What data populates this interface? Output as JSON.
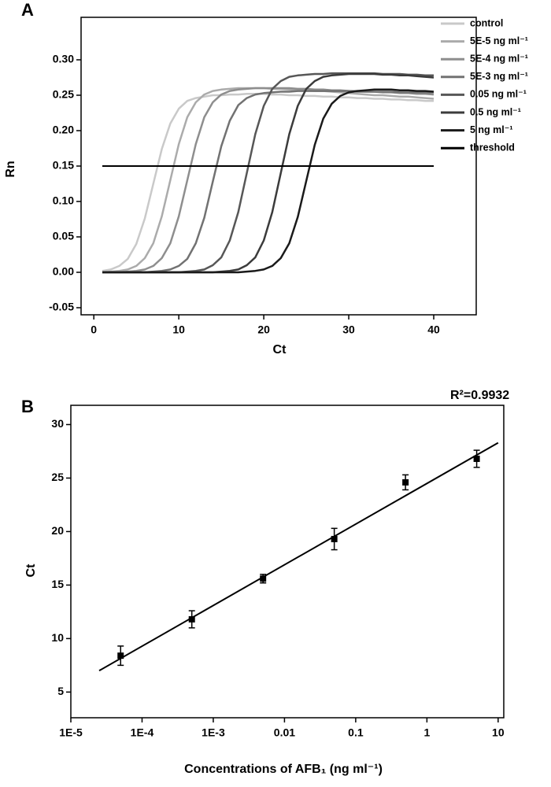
{
  "chart_data": [
    {
      "type": "line",
      "panel_label": "A",
      "xlabel": "Ct",
      "ylabel": "Rn",
      "xlim": [
        -1.5,
        45
      ],
      "xticks": [
        0,
        10,
        20,
        30,
        40
      ],
      "ylim": [
        -0.06,
        0.36
      ],
      "yticks": [
        {
          "value": -0.05,
          "label": "-0.05"
        },
        {
          "value": 0,
          "label": "0.00"
        },
        {
          "value": 0.05,
          "label": "0.05"
        },
        {
          "value": 0.1,
          "label": "0.10"
        },
        {
          "value": 0.15,
          "label": "0.15"
        },
        {
          "value": 0.2,
          "label": "0.20"
        },
        {
          "value": 0.25,
          "label": "0.25"
        },
        {
          "value": 0.3,
          "label": "0.30"
        }
      ],
      "x": [
        1,
        2,
        3,
        4,
        5,
        6,
        7,
        8,
        9,
        10,
        11,
        12,
        13,
        14,
        15,
        16,
        17,
        18,
        19,
        20,
        21,
        22,
        23,
        24,
        25,
        26,
        27,
        28,
        29,
        30,
        31,
        32,
        33,
        34,
        35,
        36,
        37,
        38,
        39,
        40
      ],
      "series": [
        {
          "name": "control",
          "color": "#c9c9c9",
          "values": [
            0.002,
            0.004,
            0.009,
            0.019,
            0.04,
            0.076,
            0.125,
            0.174,
            0.21,
            0.231,
            0.242,
            0.246,
            0.248,
            0.25,
            0.25,
            0.251,
            0.251,
            0.252,
            0.252,
            0.252,
            0.251,
            0.251,
            0.25,
            0.25,
            0.249,
            0.249,
            0.248,
            0.248,
            0.247,
            0.247,
            0.246,
            0.246,
            0.245,
            0.245,
            0.244,
            0.244,
            0.243,
            0.243,
            0.242,
            0.242
          ]
        },
        {
          "name": "5E-5 ng ml⁻¹",
          "color": "#ababab",
          "values": [
            0,
            0.001,
            0.002,
            0.004,
            0.009,
            0.02,
            0.041,
            0.079,
            0.13,
            0.181,
            0.219,
            0.24,
            0.251,
            0.256,
            0.258,
            0.259,
            0.26,
            0.26,
            0.26,
            0.26,
            0.259,
            0.259,
            0.258,
            0.258,
            0.257,
            0.256,
            0.256,
            0.255,
            0.254,
            0.253,
            0.252,
            0.251,
            0.25,
            0.25,
            0.249,
            0.248,
            0.248,
            0.247,
            0.246,
            0.245
          ]
        },
        {
          "name": "5E-4 ng ml⁻¹",
          "color": "#8e8e8e",
          "values": [
            0,
            0,
            0,
            0.001,
            0.002,
            0.004,
            0.009,
            0.02,
            0.041,
            0.079,
            0.13,
            0.181,
            0.219,
            0.24,
            0.251,
            0.256,
            0.258,
            0.259,
            0.26,
            0.26,
            0.26,
            0.26,
            0.26,
            0.259,
            0.259,
            0.258,
            0.258,
            0.257,
            0.257,
            0.256,
            0.256,
            0.255,
            0.255,
            0.254,
            0.254,
            0.253,
            0.253,
            0.252,
            0.252,
            0.251
          ]
        },
        {
          "name": "5E-3 ng ml⁻¹",
          "color": "#727272",
          "values": [
            0,
            0,
            0,
            0,
            0,
            0,
            0.001,
            0.002,
            0.004,
            0.009,
            0.019,
            0.041,
            0.077,
            0.128,
            0.178,
            0.214,
            0.236,
            0.246,
            0.251,
            0.253,
            0.254,
            0.255,
            0.255,
            0.256,
            0.256,
            0.256,
            0.256,
            0.256,
            0.256,
            0.256,
            0.255,
            0.255,
            0.255,
            0.255,
            0.255,
            0.254,
            0.254,
            0.254,
            0.254,
            0.254
          ]
        },
        {
          "name": "0.05 ng ml⁻¹",
          "color": "#575757",
          "values": [
            0,
            0,
            0,
            0,
            0,
            0,
            0,
            0,
            0,
            0,
            0.001,
            0.002,
            0.004,
            0.01,
            0.021,
            0.045,
            0.085,
            0.14,
            0.195,
            0.235,
            0.259,
            0.27,
            0.276,
            0.278,
            0.279,
            0.28,
            0.28,
            0.281,
            0.281,
            0.281,
            0.281,
            0.281,
            0.281,
            0.28,
            0.28,
            0.28,
            0.279,
            0.279,
            0.278,
            0.278
          ]
        },
        {
          "name": "0.5 ng ml⁻¹",
          "color": "#3b3b3b",
          "values": [
            0,
            0,
            0,
            0,
            0,
            0,
            0,
            0,
            0,
            0,
            0,
            0,
            0,
            0,
            0.001,
            0.002,
            0.004,
            0.01,
            0.021,
            0.045,
            0.085,
            0.14,
            0.195,
            0.235,
            0.259,
            0.27,
            0.276,
            0.278,
            0.279,
            0.28,
            0.28,
            0.28,
            0.28,
            0.279,
            0.279,
            0.278,
            0.278,
            0.277,
            0.276,
            0.275
          ]
        },
        {
          "name": "5 ng ml⁻¹",
          "color": "#1a1a1a",
          "values": [
            0,
            0,
            0,
            0,
            0,
            0,
            0,
            0,
            0,
            0,
            0,
            0,
            0,
            0,
            0,
            0,
            0,
            0.001,
            0.002,
            0.004,
            0.009,
            0.02,
            0.041,
            0.078,
            0.129,
            0.18,
            0.217,
            0.238,
            0.249,
            0.254,
            0.256,
            0.257,
            0.258,
            0.258,
            0.258,
            0.257,
            0.257,
            0.256,
            0.256,
            0.255
          ]
        }
      ],
      "threshold": {
        "name": "threshold",
        "color": "#000000",
        "value": 0.15
      }
    },
    {
      "type": "scatter",
      "panel_label": "B",
      "xlabel": "Concentrations of AFB₁ (ng ml⁻¹)",
      "ylabel": "Ct",
      "xlog": true,
      "xlim": [
        1e-05,
        12
      ],
      "xticks": [
        {
          "value": 1e-05,
          "label": "1E-5"
        },
        {
          "value": 0.0001,
          "label": "1E-4"
        },
        {
          "value": 0.001,
          "label": "1E-3"
        },
        0.01,
        0.1,
        1,
        10
      ],
      "ylim": [
        2.6,
        31.8
      ],
      "yticks": [
        5,
        10,
        15,
        20,
        25,
        30
      ],
      "color": "#000000",
      "x": [
        5e-05,
        0.0005,
        0.005,
        0.05,
        0.5,
        5
      ],
      "values": [
        8.4,
        11.8,
        15.6,
        19.3,
        24.6,
        26.8
      ],
      "errors": [
        0.9,
        0.8,
        0.4,
        1.0,
        0.7,
        0.8
      ],
      "fit": {
        "x": [
          2.5e-05,
          10
        ],
        "values": [
          7.0,
          28.3
        ]
      },
      "annotation": "R²=0.9932"
    }
  ]
}
